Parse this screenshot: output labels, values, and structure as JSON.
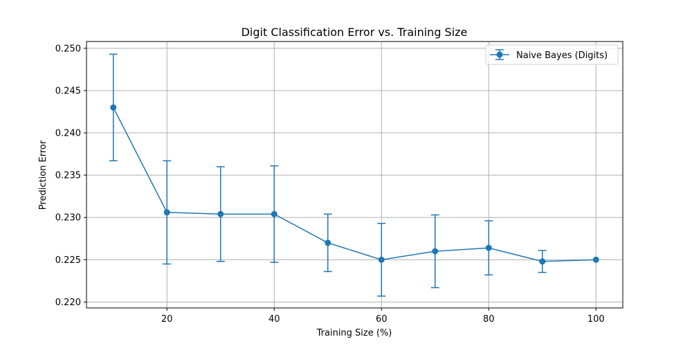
{
  "chart_data": {
    "type": "line",
    "title": "Digit Classification Error vs. Training Size",
    "xlabel": "Training Size (%)",
    "ylabel": "Prediction Error",
    "xlim": [
      5,
      105
    ],
    "ylim": [
      0.2193,
      0.2508
    ],
    "xticks": [
      20,
      40,
      60,
      80,
      100
    ],
    "xtick_labels": [
      "20",
      "40",
      "60",
      "80",
      "100"
    ],
    "yticks": [
      0.22,
      0.225,
      0.23,
      0.235,
      0.24,
      0.245,
      0.25
    ],
    "ytick_labels": [
      "0.220",
      "0.225",
      "0.230",
      "0.235",
      "0.240",
      "0.245",
      "0.250"
    ],
    "grid": true,
    "legend_position": "top-right",
    "series": [
      {
        "name": "Naive Bayes (Digits)",
        "color": "#1f77b4",
        "x": [
          10,
          20,
          30,
          40,
          50,
          60,
          70,
          80,
          90,
          100
        ],
        "y": [
          0.243,
          0.2306,
          0.2304,
          0.2304,
          0.227,
          0.225,
          0.226,
          0.2264,
          0.2248,
          0.225
        ],
        "err": [
          0.0063,
          0.0061,
          0.0056,
          0.0057,
          0.0034,
          0.0043,
          0.0043,
          0.0032,
          0.0013,
          0.0
        ]
      }
    ]
  }
}
